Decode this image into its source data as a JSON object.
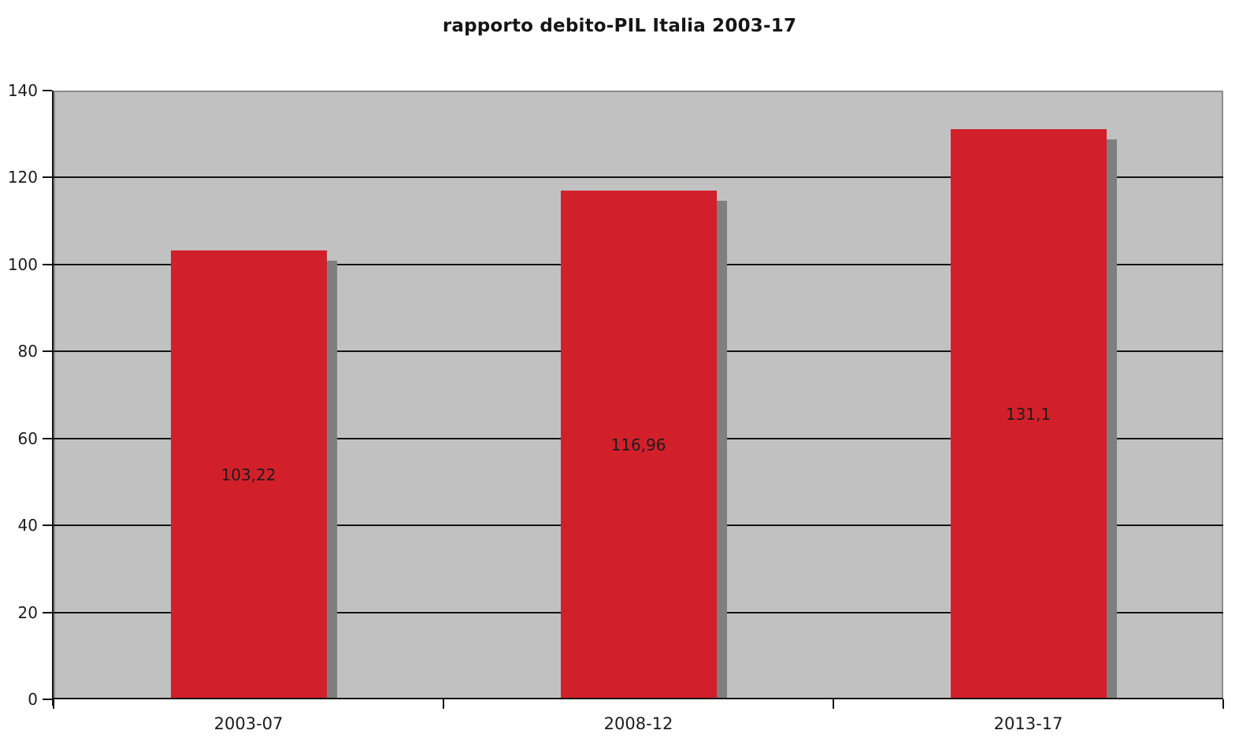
{
  "chart_data": {
    "type": "bar",
    "title": "rapporto debito-PIL Italia 2003-17",
    "categories": [
      "2003-07",
      "2008-12",
      "2013-17"
    ],
    "values": [
      103.22,
      116.96,
      131.1
    ],
    "value_labels": [
      "103,22",
      "116,96",
      "131,1"
    ],
    "xlabel": "",
    "ylabel": "",
    "ylim": [
      0,
      140
    ],
    "ytick_step": 20,
    "ytick_labels": [
      "0",
      "20",
      "40",
      "60",
      "80",
      "100",
      "120",
      "140"
    ],
    "grid": true,
    "legend": "none",
    "colors": {
      "bar": "#d2202b",
      "bar_shadow": "#7f7f7f",
      "plot_background": "#c1c1c1",
      "plot_border": "#8c8c8c",
      "gridline": "#141414",
      "axis": "#141414",
      "text": "#1c1c1c",
      "page_background": "#ffffff"
    }
  }
}
